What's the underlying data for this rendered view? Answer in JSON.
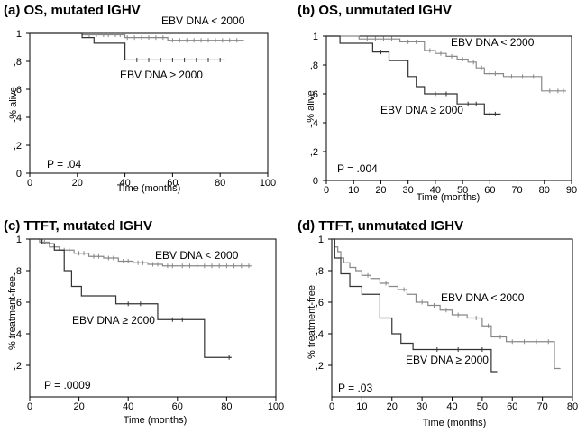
{
  "chart_data": [
    {
      "type": "line",
      "subtype": "kaplan-meier",
      "title": "(a) OS, mutated IGHV",
      "xlabel": "Time (months)",
      "ylabel": "% alive",
      "xlim": [
        0,
        100
      ],
      "ylim": [
        0,
        1
      ],
      "xticks": [
        0,
        20,
        40,
        60,
        80,
        100
      ],
      "yticks": [
        0,
        0.2,
        0.4,
        0.6,
        0.8,
        1
      ],
      "ytick_labels": [
        "0",
        ",2",
        ",4",
        ",6",
        ",8",
        "1"
      ],
      "p_value": "P = .04",
      "series": [
        {
          "name": "EBV DNA < 2000",
          "color": "#888888",
          "x": [
            0,
            22,
            40,
            58,
            90
          ],
          "y": [
            1,
            0.99,
            0.97,
            0.95,
            0.95
          ],
          "censored_x": [
            25,
            28,
            31,
            33,
            36,
            38,
            41,
            44,
            47,
            50,
            53,
            56,
            60,
            63,
            66,
            69,
            72,
            75,
            78,
            81,
            84,
            87
          ]
        },
        {
          "name": "EBV DNA ≥ 2000",
          "color": "#333333",
          "x": [
            0,
            22,
            27,
            40,
            82
          ],
          "y": [
            1,
            0.97,
            0.93,
            0.81,
            0.81
          ],
          "censored_x": [
            45,
            50,
            55,
            60,
            65,
            70,
            75,
            80
          ]
        }
      ]
    },
    {
      "type": "line",
      "subtype": "kaplan-meier",
      "title": "(b) OS, unmutated IGHV",
      "xlabel": "Time (months)",
      "ylabel": "% alive",
      "xlim": [
        0,
        90
      ],
      "ylim": [
        0,
        1
      ],
      "xticks": [
        0,
        10,
        20,
        30,
        40,
        50,
        60,
        70,
        80,
        90
      ],
      "yticks": [
        0,
        0.2,
        0.4,
        0.6,
        0.8,
        1
      ],
      "ytick_labels": [
        "0",
        ",2",
        ",4",
        ",6",
        ",8",
        "1"
      ],
      "p_value": "P = .004",
      "series": [
        {
          "name": "EBV DNA < 2000",
          "color": "#888888",
          "x": [
            0,
            12,
            27,
            36,
            40,
            44,
            48,
            52,
            55,
            58,
            65,
            79,
            88
          ],
          "y": [
            1,
            0.98,
            0.96,
            0.9,
            0.88,
            0.86,
            0.84,
            0.82,
            0.78,
            0.74,
            0.72,
            0.62,
            0.62
          ],
          "censored_x": [
            15,
            18,
            21,
            24,
            30,
            33,
            38,
            42,
            46,
            50,
            54,
            57,
            60,
            62,
            68,
            72,
            76,
            82,
            85,
            87
          ]
        },
        {
          "name": "EBV DNA ≥ 2000",
          "color": "#333333",
          "x": [
            0,
            5,
            17,
            23,
            30,
            33,
            36,
            48,
            58,
            64
          ],
          "y": [
            1,
            0.95,
            0.89,
            0.83,
            0.72,
            0.65,
            0.6,
            0.53,
            0.46,
            0.46
          ],
          "censored_x": [
            20,
            40,
            44,
            52,
            55,
            60,
            62
          ]
        }
      ]
    },
    {
      "type": "line",
      "subtype": "kaplan-meier",
      "title": "(c) TTFT, mutated IGHV",
      "xlabel": "Time (months)",
      "ylabel": "% treatment-free",
      "xlim": [
        0,
        100
      ],
      "ylim": [
        0,
        1
      ],
      "xticks": [
        0,
        20,
        40,
        60,
        80,
        100
      ],
      "yticks": [
        0.2,
        0.4,
        0.6,
        0.8,
        1
      ],
      "ytick_labels": [
        ",2",
        ",4",
        ",6",
        ",8",
        "1"
      ],
      "p_value": "P = .0009",
      "series": [
        {
          "name": "EBV DNA < 2000",
          "color": "#888888",
          "x": [
            0,
            4,
            8,
            12,
            18,
            24,
            30,
            36,
            42,
            48,
            54,
            60,
            90
          ],
          "y": [
            1,
            0.98,
            0.95,
            0.93,
            0.91,
            0.89,
            0.88,
            0.86,
            0.85,
            0.84,
            0.83,
            0.83,
            0.83
          ],
          "censored_x": [
            6,
            10,
            14,
            16,
            20,
            22,
            26,
            28,
            32,
            34,
            38,
            40,
            44,
            46,
            50,
            52,
            56,
            58,
            62,
            65,
            68,
            71,
            74,
            77,
            80,
            83,
            86,
            89
          ]
        },
        {
          "name": "EBV DNA ≥ 2000",
          "color": "#333333",
          "x": [
            0,
            5,
            10,
            14,
            17,
            21,
            35,
            52,
            71,
            82
          ],
          "y": [
            1,
            0.97,
            0.93,
            0.8,
            0.7,
            0.64,
            0.59,
            0.49,
            0.25,
            0.25
          ],
          "censored_x": [
            40,
            45,
            58,
            62,
            81
          ]
        }
      ]
    },
    {
      "type": "line",
      "subtype": "kaplan-meier",
      "title": "(d) TTFT, unmutated IGHV",
      "xlabel": "Time (months)",
      "ylabel": "% treatment-free",
      "xlim": [
        0,
        80
      ],
      "ylim": [
        0,
        1
      ],
      "xticks": [
        0,
        10,
        20,
        30,
        40,
        50,
        60,
        70,
        80
      ],
      "yticks": [
        0.2,
        0.4,
        0.6,
        0.8,
        1
      ],
      "ytick_labels": [
        ",2",
        ",4",
        ",6",
        ",8",
        "1"
      ],
      "p_value": "P = .03",
      "series": [
        {
          "name": "EBV DNA < 2000",
          "color": "#888888",
          "x": [
            0,
            1,
            2,
            3,
            4,
            6,
            8,
            10,
            13,
            16,
            19,
            22,
            25,
            28,
            32,
            36,
            40,
            45,
            50,
            53,
            58,
            74,
            76
          ],
          "y": [
            1,
            0.95,
            0.92,
            0.88,
            0.85,
            0.82,
            0.8,
            0.77,
            0.75,
            0.72,
            0.7,
            0.68,
            0.65,
            0.6,
            0.58,
            0.55,
            0.52,
            0.5,
            0.45,
            0.38,
            0.35,
            0.18,
            0.18
          ],
          "censored_x": [
            12,
            18,
            24,
            30,
            34,
            38,
            42,
            48,
            52,
            56,
            60,
            64,
            68,
            72
          ]
        },
        {
          "name": "EBV DNA ≥ 2000",
          "color": "#333333",
          "x": [
            0,
            1,
            3,
            6,
            10,
            16,
            20,
            23,
            27,
            33,
            44,
            53,
            55
          ],
          "y": [
            1,
            0.88,
            0.78,
            0.7,
            0.65,
            0.5,
            0.4,
            0.34,
            0.3,
            0.3,
            0.3,
            0.16,
            0.16
          ],
          "censored_x": [
            35,
            42,
            50
          ]
        }
      ]
    }
  ]
}
